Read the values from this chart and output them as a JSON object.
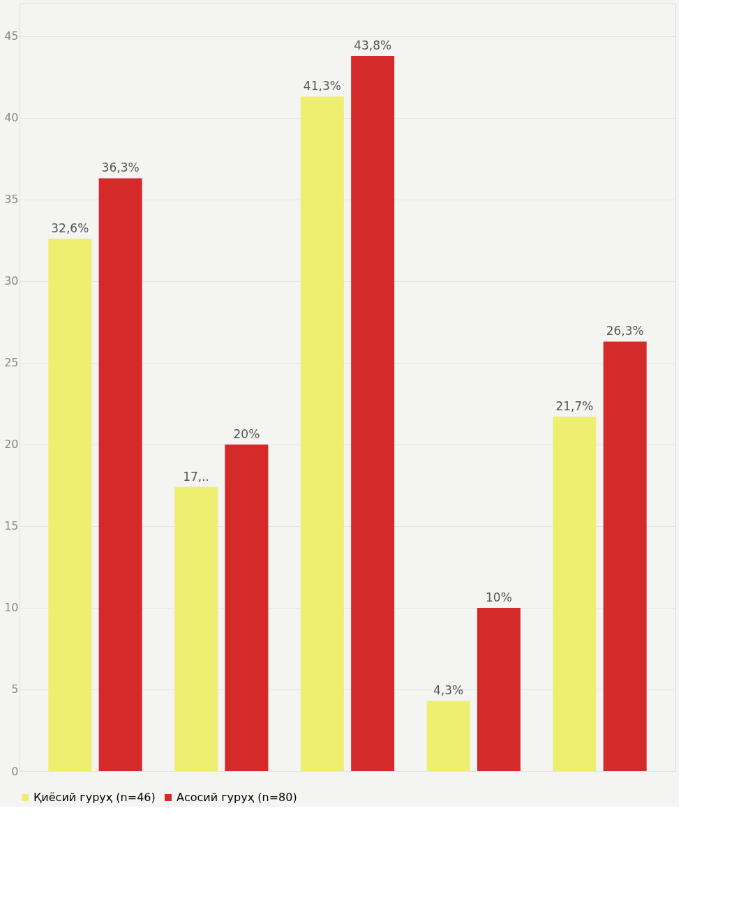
{
  "chart_data": {
    "type": "bar",
    "categories": [
      null,
      null,
      null,
      null,
      null
    ],
    "series": [
      {
        "name": "Қиёсий гуруҳ (n=46)",
        "color": "#eeee70",
        "values": [
          32.6,
          17.4,
          41.3,
          4.3,
          21.7
        ],
        "value_labels": [
          "32,6%",
          "17,..",
          "41,3%",
          "4,3%",
          "21,7%"
        ]
      },
      {
        "name": "Асосий гуруҳ (n=80)",
        "color": "#d42a2a",
        "values": [
          36.3,
          20,
          43.8,
          10,
          26.3
        ],
        "value_labels": [
          "36,3%",
          "20%",
          "43,8%",
          "10%",
          "26,3%"
        ]
      }
    ],
    "ylim": [
      0,
      47
    ],
    "yticks": [
      0,
      5,
      10,
      15,
      20,
      25,
      30,
      35,
      40,
      45
    ],
    "grid": "y",
    "legend": "bottom"
  }
}
